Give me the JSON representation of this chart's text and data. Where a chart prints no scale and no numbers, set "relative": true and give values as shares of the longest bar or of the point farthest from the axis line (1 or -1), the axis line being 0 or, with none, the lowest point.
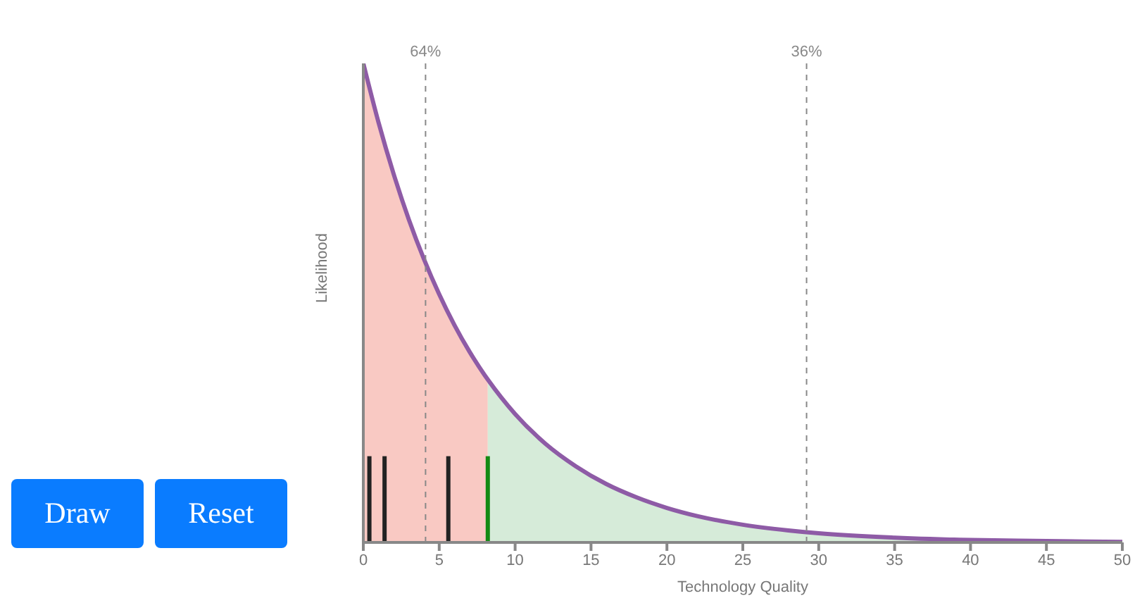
{
  "chart_data": {
    "type": "area",
    "relative": true,
    "xlabel": "Technology Quality",
    "ylabel": "Likelihood",
    "xlim": [
      0,
      50
    ],
    "xticks": [
      0,
      5,
      10,
      15,
      20,
      25,
      30,
      35,
      40,
      45,
      50
    ],
    "series": [
      {
        "color": "#f9c9c3",
        "x": [
          0,
          1,
          2,
          3,
          4,
          5,
          6,
          7,
          8,
          8.2
        ],
        "values": [
          1.0,
          0.877,
          0.769,
          0.674,
          0.591,
          0.518,
          0.454,
          0.398,
          0.349,
          0.34
        ]
      },
      {
        "color": "#d6ebd9",
        "x": [
          8.2,
          10,
          12,
          14,
          16,
          18,
          20,
          22,
          25,
          28,
          30,
          35,
          40,
          45,
          50
        ],
        "values": [
          0.34,
          0.268,
          0.206,
          0.159,
          0.122,
          0.094,
          0.072,
          0.055,
          0.037,
          0.025,
          0.019,
          0.01,
          0.005,
          0.003,
          0.001
        ]
      },
      {
        "type": "line",
        "color": "#8e5ba6",
        "x": [
          0,
          1,
          2,
          3,
          4,
          5,
          6,
          7,
          8,
          8.2,
          10,
          12,
          14,
          16,
          18,
          20,
          22,
          25,
          28,
          30,
          35,
          40,
          45,
          50
        ],
        "values": [
          1.0,
          0.877,
          0.769,
          0.674,
          0.591,
          0.518,
          0.454,
          0.398,
          0.349,
          0.34,
          0.268,
          0.206,
          0.159,
          0.122,
          0.094,
          0.072,
          0.055,
          0.037,
          0.025,
          0.019,
          0.01,
          0.005,
          0.003,
          0.001
        ]
      },
      {
        "type": "bar",
        "x": [
          0.4,
          1.4,
          5.6,
          8.2
        ],
        "values": [
          0.18,
          0.18,
          0.18,
          0.18
        ],
        "colors": [
          "#222222",
          "#222222",
          "#222222",
          "#138a13"
        ]
      }
    ],
    "ref_lines": [
      {
        "axis": "x",
        "value": 4.1,
        "color": "#888888",
        "line_style": "dashed"
      },
      {
        "axis": "x",
        "value": 29.2,
        "color": "#888888",
        "line_style": "dashed"
      }
    ],
    "annotations": [
      "Draw",
      "Reset",
      "64%",
      "36%"
    ],
    "marker": "none",
    "line_style": "solid",
    "grid": false,
    "legend": false,
    "tick_labels": "x"
  }
}
